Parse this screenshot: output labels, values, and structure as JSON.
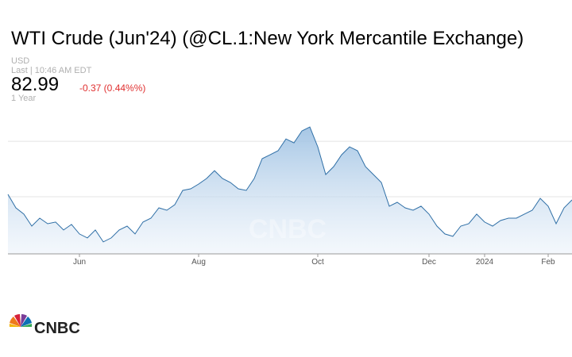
{
  "chart_data": {
    "type": "line",
    "title": "WTI Crude (Jun'24) (@CL.1:New York Mercantile Exchange)",
    "currency": "USD",
    "timestamp": "Last | 10:46 AM EDT",
    "price": "82.99",
    "change": "-0.37 (0.44%%)",
    "period": "1 Year",
    "watermark": "CNBC",
    "logo": "CNBC",
    "categories": [
      null,
      null,
      null,
      null,
      null,
      null,
      null,
      null,
      null,
      "Jun",
      null,
      null,
      null,
      null,
      null,
      null,
      null,
      null,
      null,
      null,
      null,
      null,
      null,
      null,
      "Aug",
      null,
      null,
      null,
      null,
      null,
      null,
      null,
      null,
      null,
      null,
      null,
      null,
      null,
      null,
      "Oct",
      null,
      null,
      null,
      null,
      null,
      null,
      null,
      null,
      null,
      null,
      null,
      null,
      null,
      "Dec",
      null,
      null,
      null,
      null,
      null,
      null,
      "2024",
      null,
      null,
      null,
      null,
      null,
      null,
      null,
      "Feb",
      null,
      null,
      null
    ],
    "series": [
      {
        "color": "#2f6fa6",
        "values": [
          80.43,
          78.0,
          76.86,
          74.71,
          76.14,
          75.14,
          75.43,
          74.0,
          75.0,
          73.29,
          72.57,
          74.0,
          71.86,
          72.57,
          74.0,
          74.71,
          73.29,
          75.43,
          76.14,
          78.0,
          77.57,
          78.57,
          81.14,
          81.43,
          82.29,
          83.29,
          84.71,
          83.29,
          82.57,
          81.43,
          81.14,
          83.29,
          86.86,
          87.57,
          88.29,
          90.43,
          89.71,
          91.86,
          92.57,
          89.0,
          84.0,
          85.43,
          87.57,
          89.0,
          88.29,
          85.43,
          84.0,
          82.57,
          78.29,
          79.0,
          78.0,
          77.57,
          78.29,
          76.86,
          74.71,
          73.29,
          72.86,
          74.71,
          75.14,
          76.86,
          75.43,
          74.71,
          75.71,
          76.14,
          76.14,
          76.86,
          77.57,
          79.71,
          78.29,
          75.14,
          78.0,
          79.43
        ]
      }
    ],
    "ylim": [
      69.7,
      94.3
    ],
    "yticks": [
      80,
      90
    ],
    "grid": true
  }
}
